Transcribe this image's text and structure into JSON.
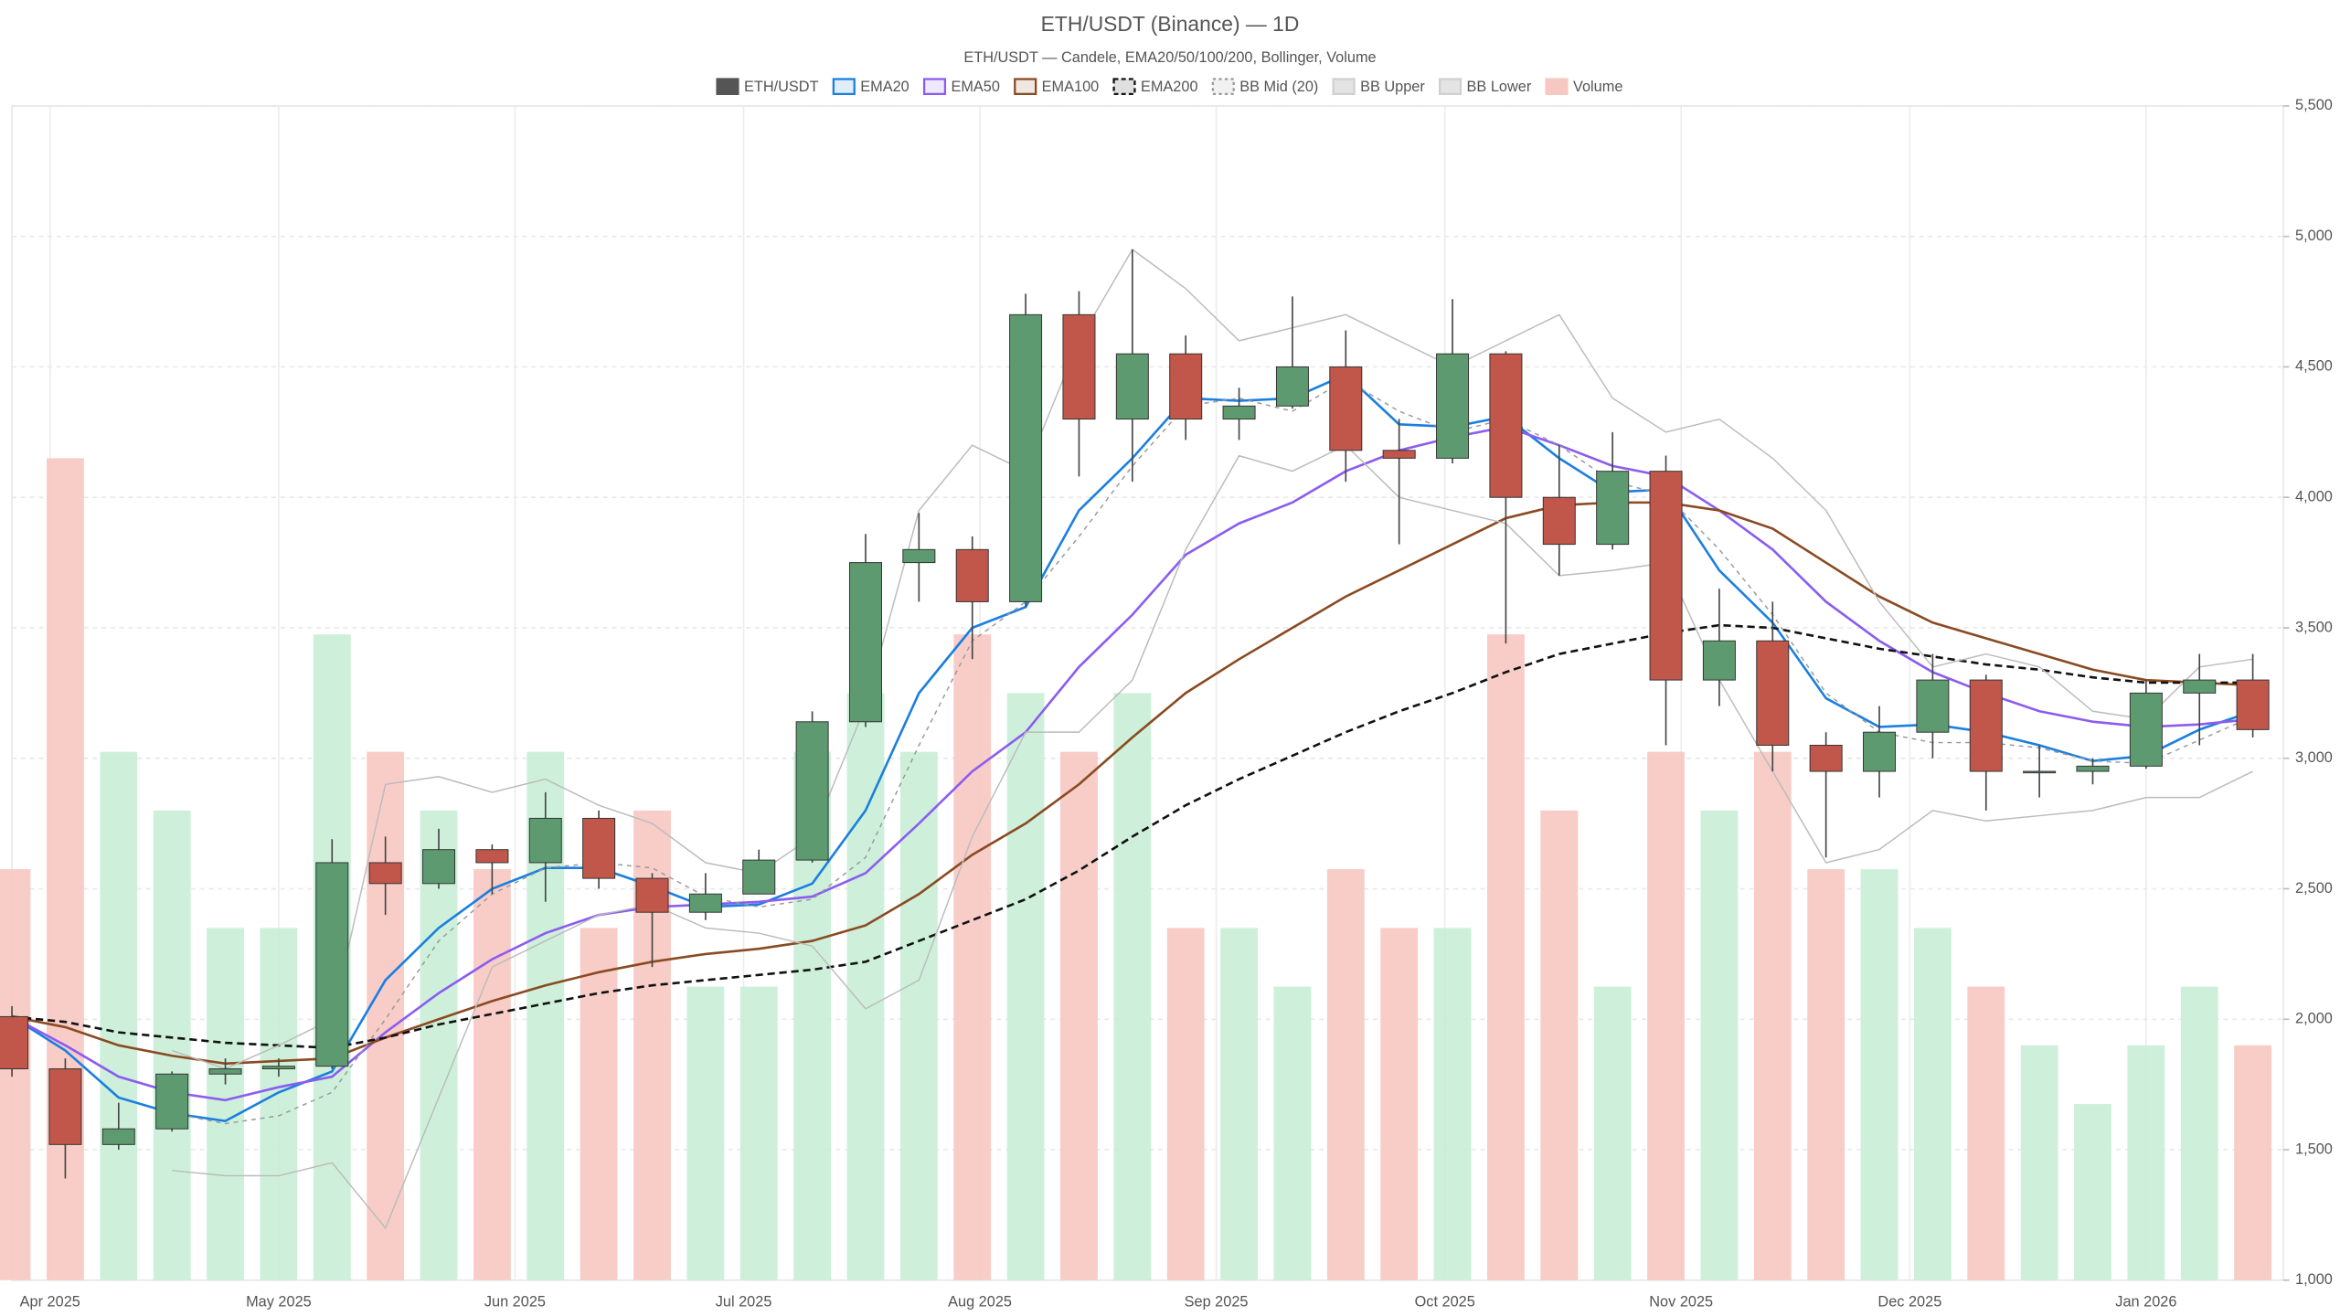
{
  "chart_data": {
    "type": "candlestick",
    "title": "ETH/USDT (Binance) — 1D",
    "subtitle": "ETH/USDT — Candele, EMA20/50/100/200, Bollinger, Volume",
    "candle_name": "ETH/USDT",
    "up_color": "#5e9a6f",
    "down_color": "#c0574a",
    "volume_name": "Volume",
    "volume_up_color": "#c9eed6",
    "volume_down_color": "#f7c8c2",
    "volume_legend_color": "#f7c8c2",
    "x": [
      "2025-03-27",
      "2025-04-03",
      "2025-04-10",
      "2025-04-17",
      "2025-04-24",
      "2025-05-01",
      "2025-05-08",
      "2025-05-15",
      "2025-05-22",
      "2025-05-29",
      "2025-06-05",
      "2025-06-12",
      "2025-06-19",
      "2025-06-26",
      "2025-07-03",
      "2025-07-10",
      "2025-07-17",
      "2025-07-24",
      "2025-07-31",
      "2025-08-07",
      "2025-08-14",
      "2025-08-21",
      "2025-08-28",
      "2025-09-04",
      "2025-09-11",
      "2025-09-18",
      "2025-09-25",
      "2025-10-02",
      "2025-10-09",
      "2025-10-16",
      "2025-10-23",
      "2025-10-30",
      "2025-11-06",
      "2025-11-13",
      "2025-11-20",
      "2025-11-27",
      "2025-12-04",
      "2025-12-11",
      "2025-12-18",
      "2025-12-25",
      "2026-01-01",
      "2026-01-08",
      "2026-01-15"
    ],
    "open": [
      2010,
      1810,
      1520,
      1580,
      1790,
      1810,
      1820,
      2600,
      2520,
      2650,
      2600,
      2770,
      2540,
      2410,
      2480,
      2610,
      3140,
      3750,
      3800,
      3600,
      4700,
      4300,
      4550,
      4300,
      4350,
      4500,
      4180,
      4150,
      4550,
      4000,
      3820,
      4100,
      3300,
      3450,
      3050,
      2950,
      3100,
      3300,
      2950,
      2950,
      2970,
      3250,
      3300
    ],
    "high": [
      2050,
      1850,
      1680,
      1800,
      1850,
      1850,
      2690,
      2700,
      2730,
      2670,
      2870,
      2800,
      2560,
      2560,
      2650,
      3180,
      3860,
      3940,
      3850,
      4780,
      4790,
      4950,
      4620,
      4420,
      4770,
      4640,
      4300,
      4760,
      4560,
      4200,
      4250,
      4160,
      3650,
      3600,
      3100,
      3200,
      3400,
      3320,
      3050,
      3000,
      3300,
      3400,
      3400
    ],
    "low": [
      1780,
      1390,
      1500,
      1570,
      1750,
      1780,
      1810,
      2400,
      2500,
      2480,
      2450,
      2500,
      2200,
      2380,
      2480,
      2600,
      3120,
      3600,
      3380,
      3580,
      4080,
      4060,
      4220,
      4220,
      4340,
      4060,
      3820,
      4130,
      3440,
      3700,
      3800,
      3050,
      3200,
      2950,
      2620,
      2850,
      3000,
      2800,
      2850,
      2900,
      2960,
      3050,
      3080
    ],
    "close": [
      1810,
      1520,
      1580,
      1790,
      1810,
      1820,
      2600,
      2520,
      2650,
      2600,
      2770,
      2540,
      2410,
      2480,
      2610,
      3140,
      3750,
      3800,
      3600,
      4700,
      4300,
      4550,
      4300,
      4350,
      4500,
      4180,
      4150,
      4550,
      4000,
      3820,
      4100,
      3300,
      3450,
      3050,
      2950,
      3100,
      3300,
      2950,
      2950,
      2970,
      3250,
      3300,
      3110
    ],
    "volume": [
      350,
      700,
      450,
      400,
      300,
      300,
      550,
      450,
      400,
      350,
      450,
      300,
      400,
      250,
      250,
      450,
      500,
      450,
      550,
      500,
      450,
      500,
      300,
      300,
      250,
      350,
      300,
      300,
      550,
      400,
      250,
      450,
      400,
      450,
      350,
      350,
      300,
      250,
      200,
      150,
      200,
      250,
      200
    ],
    "series": [
      {
        "name": "EMA20",
        "color": "#1a7fe0",
        "style": "solid",
        "values": [
          2010,
          1880,
          1700,
          1640,
          1610,
          1720,
          1800,
          2150,
          2350,
          2500,
          2580,
          2580,
          2510,
          2430,
          2440,
          2520,
          2800,
          3250,
          3500,
          3580,
          3950,
          4150,
          4380,
          4370,
          4380,
          4470,
          4280,
          4270,
          4310,
          4150,
          4020,
          4030,
          3720,
          3520,
          3230,
          3120,
          3130,
          3100,
          3050,
          2990,
          3010,
          3110,
          3180
        ]
      },
      {
        "name": "EMA50",
        "color": "#8b5cf0",
        "style": "solid",
        "values": [
          2010,
          1900,
          1780,
          1720,
          1690,
          1740,
          1780,
          1950,
          2100,
          2230,
          2330,
          2400,
          2430,
          2440,
          2450,
          2470,
          2560,
          2750,
          2950,
          3100,
          3350,
          3550,
          3780,
          3900,
          3980,
          4100,
          4180,
          4230,
          4270,
          4200,
          4120,
          4080,
          3950,
          3800,
          3600,
          3450,
          3330,
          3250,
          3180,
          3140,
          3120,
          3130,
          3150
        ]
      },
      {
        "name": "EMA100",
        "color": "#8a4a22",
        "style": "solid",
        "values": [
          2010,
          1970,
          1900,
          1860,
          1830,
          1840,
          1850,
          1930,
          2000,
          2070,
          2130,
          2180,
          2220,
          2250,
          2270,
          2300,
          2360,
          2480,
          2630,
          2750,
          2900,
          3080,
          3250,
          3380,
          3500,
          3620,
          3720,
          3820,
          3920,
          3970,
          3980,
          3980,
          3950,
          3880,
          3750,
          3620,
          3520,
          3460,
          3400,
          3340,
          3300,
          3290,
          3280
        ]
      },
      {
        "name": "EMA200",
        "color": "#111111",
        "style": "dashed",
        "values": [
          2010,
          1990,
          1950,
          1930,
          1910,
          1900,
          1890,
          1930,
          1980,
          2020,
          2060,
          2100,
          2130,
          2150,
          2170,
          2190,
          2220,
          2300,
          2380,
          2460,
          2570,
          2700,
          2820,
          2920,
          3010,
          3100,
          3180,
          3250,
          3330,
          3400,
          3440,
          3480,
          3510,
          3500,
          3460,
          3420,
          3390,
          3360,
          3340,
          3310,
          3290,
          3290,
          3290
        ]
      },
      {
        "name": "BB Mid (20)",
        "color": "#999999",
        "style": "dotted",
        "values": [
          null,
          null,
          null,
          1640,
          1600,
          1630,
          1720,
          2000,
          2300,
          2480,
          2580,
          2600,
          2580,
          2470,
          2430,
          2460,
          2620,
          3050,
          3450,
          3600,
          3850,
          4120,
          4350,
          4380,
          4330,
          4450,
          4330,
          4250,
          4300,
          4200,
          4060,
          4010,
          3800,
          3550,
          3250,
          3100,
          3060,
          3060,
          3040,
          2990,
          2980,
          3070,
          3160
        ]
      },
      {
        "name": "BB Upper",
        "color": "#bbbbbb",
        "style": "solid",
        "values": [
          null,
          null,
          null,
          1880,
          1810,
          1900,
          2000,
          2900,
          2930,
          2870,
          2920,
          2820,
          2750,
          2600,
          2560,
          2700,
          3200,
          3950,
          4200,
          4100,
          4600,
          4950,
          4800,
          4600,
          4650,
          4700,
          4600,
          4500,
          4600,
          4700,
          4380,
          4250,
          4300,
          4150,
          3950,
          3600,
          3350,
          3400,
          3350,
          3180,
          3150,
          3350,
          3380
        ]
      },
      {
        "name": "BB Lower",
        "color": "#bbbbbb",
        "style": "solid",
        "values": [
          null,
          null,
          null,
          1420,
          1400,
          1400,
          1450,
          1200,
          1700,
          2200,
          2300,
          2400,
          2440,
          2350,
          2330,
          2280,
          2040,
          2150,
          2700,
          3100,
          3100,
          3300,
          3800,
          4160,
          4100,
          4200,
          4000,
          3950,
          3900,
          3700,
          3720,
          3750,
          3300,
          2950,
          2600,
          2650,
          2800,
          2760,
          2780,
          2800,
          2850,
          2850,
          2950
        ]
      }
    ],
    "xlim": [
      "2025-03-27",
      "2026-01-19"
    ],
    "xticks": [
      {
        "value": "2025-04-01",
        "label": "Apr 2025"
      },
      {
        "value": "2025-05-01",
        "label": "May 2025"
      },
      {
        "value": "2025-06-01",
        "label": "Jun 2025"
      },
      {
        "value": "2025-07-01",
        "label": "Jul 2025"
      },
      {
        "value": "2025-08-01",
        "label": "Aug 2025"
      },
      {
        "value": "2025-09-01",
        "label": "Sep 2025"
      },
      {
        "value": "2025-10-01",
        "label": "Oct 2025"
      },
      {
        "value": "2025-11-01",
        "label": "Nov 2025"
      },
      {
        "value": "2025-12-01",
        "label": "Dec 2025"
      },
      {
        "value": "2026-01-01",
        "label": "Jan 2026"
      }
    ],
    "ylim": [
      1000,
      5500
    ],
    "yticks": [
      {
        "value": 1000,
        "label": "1,000"
      },
      {
        "value": 1500,
        "label": "1,500"
      },
      {
        "value": 2000,
        "label": "2,000"
      },
      {
        "value": 2500,
        "label": "2,500"
      },
      {
        "value": 3000,
        "label": "3,000"
      },
      {
        "value": 3500,
        "label": "3,500"
      },
      {
        "value": 4000,
        "label": "4,000"
      },
      {
        "value": 4500,
        "label": "4,500"
      },
      {
        "value": 5000,
        "label": "5,000"
      },
      {
        "value": 5500,
        "label": "5,500"
      }
    ],
    "y2lim": [
      0,
      1000
    ],
    "grid": true
  }
}
